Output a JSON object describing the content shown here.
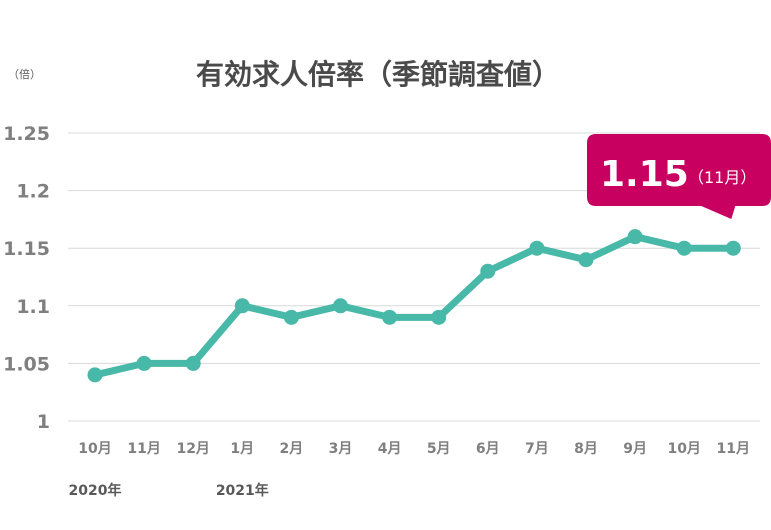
{
  "chart_data": {
    "type": "line",
    "title": "有効求人倍率（季節調査値）",
    "unit_label": "（倍）",
    "categories": [
      "10月",
      "11月",
      "12月",
      "1月",
      "2月",
      "3月",
      "4月",
      "5月",
      "6月",
      "7月",
      "8月",
      "9月",
      "10月",
      "11月"
    ],
    "year_labels": [
      {
        "label": "2020年",
        "category_index": 0
      },
      {
        "label": "2021年",
        "category_index": 3
      }
    ],
    "values": [
      1.04,
      1.05,
      1.05,
      1.1,
      1.09,
      1.1,
      1.09,
      1.09,
      1.13,
      1.15,
      1.14,
      1.16,
      1.15,
      1.15
    ],
    "ylim": [
      1,
      1.25
    ],
    "yticks": [
      1,
      1.05,
      1.1,
      1.15,
      1.2,
      1.25
    ],
    "ytick_labels": [
      "1",
      "1.05",
      "1.1",
      "1.15",
      "1.2",
      "1.25"
    ],
    "grid": true,
    "callout": {
      "value": "1.15",
      "month": "（11月）",
      "category_index": 13
    },
    "colors": {
      "line": "#48b8a8",
      "callout": "#c8005f",
      "grid": "#d9d9d9",
      "text": "#7f7f7f"
    }
  }
}
